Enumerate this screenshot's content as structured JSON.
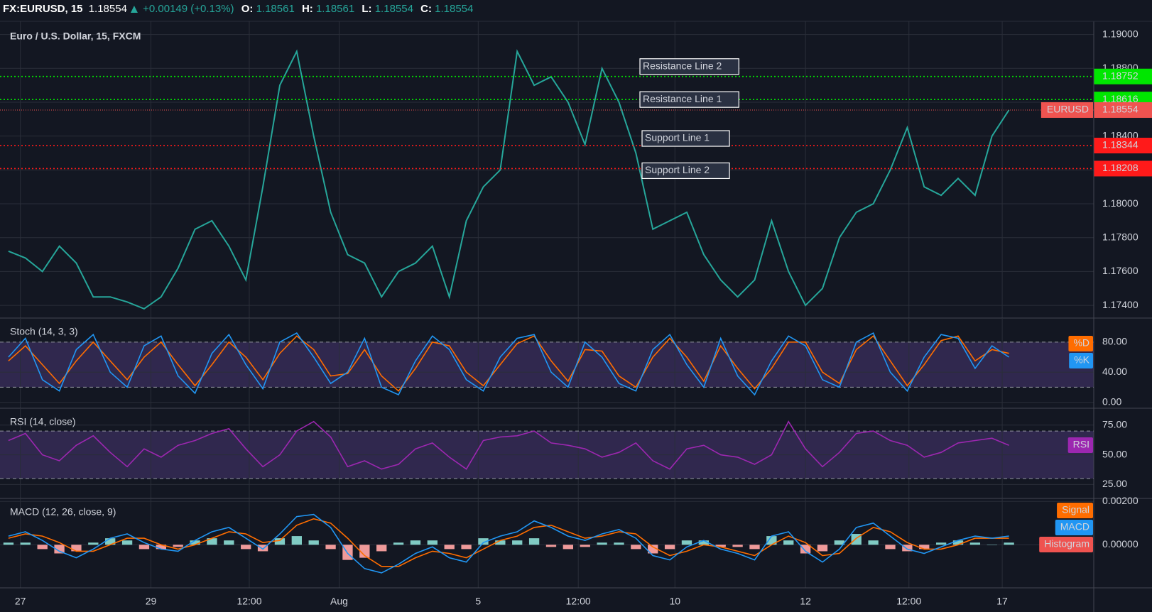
{
  "header": {
    "symbol": "FX:EURUSD, 15",
    "last": "1.18554",
    "change": "+0.00149 (+0.13%)",
    "o_label": "O:",
    "o": "1.18561",
    "h_label": "H:",
    "h": "1.18561",
    "l_label": "L:",
    "l": "1.18554",
    "c_label": "C:",
    "c": "1.18554"
  },
  "chart_data": [
    {
      "type": "line",
      "title": "Euro / U.S. Dollar, 15, FXCM",
      "xlim": [
        -0.5,
        64
      ],
      "xticks": [
        {
          "value": 0.7,
          "label": "27"
        },
        {
          "value": 8.4,
          "label": "29"
        },
        {
          "value": 14.2,
          "label": "12:00"
        },
        {
          "value": 19.5,
          "label": "Aug"
        },
        {
          "value": 27.7,
          "label": "5"
        },
        {
          "value": 33.6,
          "label": "12:00"
        },
        {
          "value": 39.3,
          "label": "10"
        },
        {
          "value": 47.0,
          "label": "12"
        },
        {
          "value": 53.1,
          "label": "12:00"
        },
        {
          "value": 58.6,
          "label": "17"
        }
      ],
      "ylim": [
        1.17325,
        1.19078
      ],
      "yticks": [
        {
          "value": 1.174,
          "label": "1.17400"
        },
        {
          "value": 1.176,
          "label": "1.17600"
        },
        {
          "value": 1.178,
          "label": "1.17800"
        },
        {
          "value": 1.18,
          "label": "1.18000"
        },
        {
          "value": 1.182,
          "label": "1.18200"
        },
        {
          "value": 1.184,
          "label": "1.18400"
        },
        {
          "value": 1.186,
          "label": "1.18600"
        },
        {
          "value": 1.188,
          "label": "1.18800"
        },
        {
          "value": 1.19,
          "label": "1.19000"
        }
      ],
      "grid": true,
      "series": [
        {
          "name": "EURUSD",
          "color": "#26a69a",
          "values": [
            1.1772,
            1.1768,
            1.176,
            1.1775,
            1.1765,
            1.1745,
            1.1745,
            1.1742,
            1.1738,
            1.1745,
            1.1762,
            1.1785,
            1.179,
            1.1775,
            1.1755,
            1.181,
            1.187,
            1.189,
            1.184,
            1.1795,
            1.177,
            1.1765,
            1.1745,
            1.176,
            1.1765,
            1.1775,
            1.1745,
            1.179,
            1.181,
            1.182,
            1.189,
            1.187,
            1.1875,
            1.186,
            1.1835,
            1.188,
            1.186,
            1.183,
            1.1785,
            1.179,
            1.1795,
            1.177,
            1.1755,
            1.1745,
            1.1755,
            1.179,
            1.176,
            1.174,
            1.175,
            1.178,
            1.1795,
            1.18,
            1.182,
            1.1845,
            1.181,
            1.1805,
            1.1815,
            1.1805,
            1.184,
            1.18554
          ]
        }
      ],
      "hlines": [
        {
          "name": "Resistance Line 2",
          "value": 1.18752,
          "label": "1.18752",
          "color": "#00e600"
        },
        {
          "name": "Resistance Line 1",
          "value": 1.18616,
          "label": "1.18616",
          "color": "#00e600"
        },
        {
          "name": "Support Line 1",
          "value": 1.18344,
          "label": "1.18344",
          "color": "#ff1a1a"
        },
        {
          "name": "Support Line 2",
          "value": 1.18208,
          "label": "1.18208",
          "color": "#ff1a1a"
        }
      ],
      "last_price": {
        "name": "EURUSD",
        "value": 1.18554,
        "label": "1.18554",
        "color": "#ef5350"
      }
    },
    {
      "type": "line",
      "title": "Stoch (14, 3, 3)",
      "ylim": [
        -7.9,
        111.9
      ],
      "yticks": [
        {
          "value": 0,
          "label": "0.00"
        },
        {
          "value": 40,
          "label": "40.00"
        },
        {
          "value": 80,
          "label": "80.00"
        }
      ],
      "band": [
        20,
        80
      ],
      "legend": "right",
      "series": [
        {
          "name": "%D",
          "color": "#ff6d00",
          "values": [
            55,
            75,
            50,
            25,
            55,
            80,
            55,
            30,
            60,
            80,
            50,
            22,
            50,
            80,
            60,
            30,
            65,
            88,
            70,
            35,
            38,
            70,
            35,
            15,
            45,
            80,
            75,
            40,
            22,
            50,
            78,
            88,
            55,
            28,
            70,
            68,
            35,
            20,
            60,
            85,
            60,
            28,
            75,
            45,
            18,
            45,
            80,
            80,
            40,
            25,
            70,
            88,
            55,
            22,
            50,
            82,
            88,
            55,
            70,
            65
          ]
        },
        {
          "name": "%K",
          "color": "#2196f3",
          "values": [
            60,
            85,
            30,
            15,
            70,
            90,
            40,
            20,
            75,
            88,
            35,
            12,
            65,
            90,
            50,
            18,
            80,
            92,
            60,
            25,
            40,
            85,
            20,
            10,
            55,
            88,
            70,
            30,
            15,
            60,
            85,
            90,
            40,
            20,
            80,
            60,
            25,
            15,
            70,
            90,
            50,
            20,
            85,
            35,
            10,
            55,
            88,
            75,
            30,
            20,
            80,
            92,
            40,
            15,
            60,
            90,
            85,
            45,
            75,
            60
          ]
        }
      ]
    },
    {
      "type": "line",
      "title": "RSI (14, close)",
      "ylim": [
        13.3,
        89.2
      ],
      "yticks": [
        {
          "value": 25,
          "label": "25.00"
        },
        {
          "value": 50,
          "label": "50.00"
        },
        {
          "value": 75,
          "label": "75.00"
        }
      ],
      "band": [
        30,
        70
      ],
      "legend": "right",
      "series": [
        {
          "name": "RSI",
          "color": "#9c27b0",
          "values": [
            62,
            68,
            50,
            45,
            58,
            66,
            52,
            40,
            55,
            48,
            58,
            62,
            68,
            72,
            55,
            40,
            50,
            70,
            78,
            65,
            40,
            45,
            38,
            42,
            55,
            60,
            48,
            38,
            62,
            65,
            66,
            70,
            60,
            58,
            55,
            48,
            52,
            60,
            45,
            38,
            55,
            58,
            50,
            48,
            42,
            50,
            78,
            55,
            40,
            52,
            68,
            70,
            62,
            58,
            48,
            52,
            60,
            62,
            64,
            58
          ]
        }
      ]
    },
    {
      "type": "line",
      "title": "MACD (12, 26, close, 9)",
      "ylim": [
        -0.00199,
        0.00214
      ],
      "yticks": [
        {
          "value": 0,
          "label": "0.00000"
        },
        {
          "value": 0.002,
          "label": "0.00200"
        }
      ],
      "legend": "right",
      "series": [
        {
          "name": "Signal",
          "color": "#ff6d00",
          "values": [
            0.0003,
            0.0005,
            0.0004,
            0.0001,
            -0.0003,
            -0.0003,
            0,
            0.0003,
            0.0003,
            0,
            -0.0002,
            0,
            0.0003,
            0.0006,
            0.0005,
            0.0001,
            0.0002,
            0.0009,
            0.0012,
            0.001,
            0.0003,
            -0.0005,
            -0.001,
            -0.001,
            -0.0006,
            -0.0003,
            -0.0004,
            -0.0006,
            -0.0002,
            0.0002,
            0.0004,
            0.0008,
            0.0009,
            0.0006,
            0.0003,
            0.0004,
            0.0006,
            0.0005,
            -0.0001,
            -0.0005,
            -0.0003,
            0,
            -0.0001,
            -0.0003,
            -0.0005,
            0,
            0.0004,
            0.0001,
            -0.0005,
            -0.0004,
            0.0003,
            0.0008,
            0.0006,
            0.0001,
            -0.0002,
            -0.0002,
            0,
            0.0003,
            0.0003,
            0.0003
          ]
        },
        {
          "name": "MACD",
          "color": "#2196f3",
          "values": [
            0.0004,
            0.0006,
            0.0002,
            -0.0003,
            -0.0006,
            -0.0002,
            0.0003,
            0.0005,
            0.0001,
            -0.0002,
            -0.0003,
            0.0002,
            0.0006,
            0.0008,
            0.0003,
            -0.0002,
            0.0005,
            0.0013,
            0.0014,
            0.0008,
            -0.0004,
            -0.0011,
            -0.0013,
            -0.0009,
            -0.0004,
            -0.0001,
            -0.0006,
            -0.0008,
            0.0001,
            0.0004,
            0.0006,
            0.0011,
            0.0008,
            0.0004,
            0.0002,
            0.0005,
            0.0007,
            0.0003,
            -0.0005,
            -0.0007,
            -0.0001,
            0.0002,
            -0.0002,
            -0.0004,
            -0.0007,
            0.0004,
            0.0006,
            -0.0003,
            -0.0008,
            -0.0002,
            0.0008,
            0.001,
            0.0004,
            -0.0002,
            -0.0004,
            -0.0001,
            0.0002,
            0.0004,
            0.0003,
            0.0004
          ]
        },
        {
          "name": "Histogram",
          "color": "#ef5350",
          "type": "bar",
          "up_color": "#80cbc4",
          "down_color": "#ef9a9a",
          "values": [
            0.0001,
            0.0001,
            -0.0002,
            -0.0004,
            -0.0003,
            0.0001,
            0.0003,
            0.0002,
            -0.0002,
            -0.0002,
            -0.0001,
            0.0002,
            0.0003,
            0.0002,
            -0.0002,
            -0.0003,
            0.0003,
            0.0004,
            0.0002,
            -0.0002,
            -0.0007,
            -0.0006,
            -0.0003,
            0.0001,
            0.0002,
            0.0002,
            -0.0002,
            -0.0002,
            0.0003,
            0.0002,
            0.0002,
            0.0003,
            -0.0001,
            -0.0002,
            -0.0001,
            0.0001,
            0.0001,
            -0.0002,
            -0.0004,
            -0.0002,
            0.0002,
            0.0002,
            -0.0001,
            -0.0001,
            -0.0002,
            0.0004,
            0.0002,
            -0.0004,
            -0.0003,
            0.0002,
            0.0005,
            0.0002,
            -0.0002,
            -0.0003,
            -0.0002,
            0.0001,
            0.0002,
            0.0001,
            0,
            0.0001
          ]
        }
      ]
    }
  ]
}
